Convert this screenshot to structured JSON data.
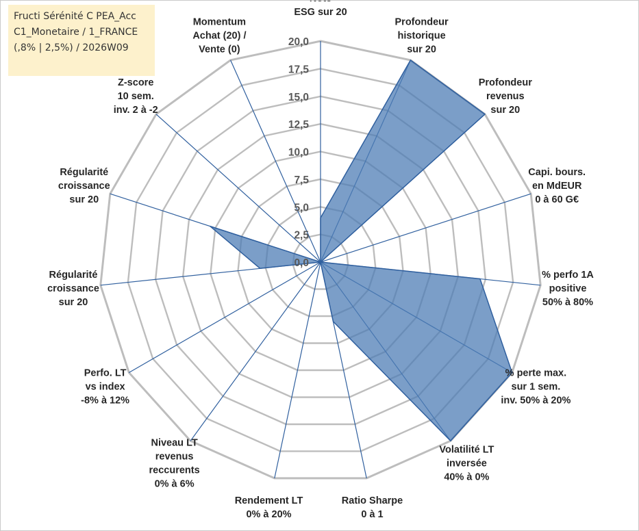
{
  "info_box": {
    "lines": [
      "Fructi Sérénité C PEA_Acc",
      "C1_Monetaire / 1_FRANCE",
      "(,8% | 2,5%) / 2026W09"
    ]
  },
  "colors": {
    "fill": "#4f7db5",
    "fill_opacity": 0.75,
    "outline": "#2f5f9e",
    "spoke": "#2f5f9e",
    "grid": "#bdbdbd",
    "info_box_bg": "#fdf1cc"
  },
  "chart_data": {
    "type": "radar",
    "title": "",
    "rlim": [
      0,
      20
    ],
    "tick_step": 2.5,
    "tick_labels": [
      "0,0",
      "2,5",
      "5,0",
      "7,5",
      "10,0",
      "12,5",
      "15,0",
      "17,5",
      "20,0"
    ],
    "grid": true,
    "legend": "none",
    "axes": [
      {
        "label": [
          "Note",
          "ESG sur 20"
        ],
        "value": 4.0
      },
      {
        "label": [
          "Profondeur",
          "historique",
          "sur 20"
        ],
        "value": 20.0
      },
      {
        "label": [
          "Profondeur",
          "revenus",
          "sur 20"
        ],
        "value": 20.0
      },
      {
        "label": [
          "Capi. bours.",
          "en MdEUR",
          "0 à 60 G€"
        ],
        "value": 0.0
      },
      {
        "label": [
          "% perfo 1A",
          "positive",
          "50% à 80%"
        ],
        "value": 14.5
      },
      {
        "label": [
          "% perte max.",
          "sur 1 sem.",
          "inv. 50% à 20%"
        ],
        "value": 20.0
      },
      {
        "label": [
          "Volatilité LT",
          "inversée",
          "40% à 0%"
        ],
        "value": 20.0
      },
      {
        "label": [
          "Ratio Sharpe",
          "0 à 1"
        ],
        "value": 5.5
      },
      {
        "label": [
          "Rendement LT",
          "0% à 20%"
        ],
        "value": 0.0
      },
      {
        "label": [
          "Niveau LT",
          "revenus",
          "reccurents",
          "0% à 6%"
        ],
        "value": 0.0
      },
      {
        "label": [
          "Perfo. LT",
          "vs index",
          "-8% à 12%"
        ],
        "value": 0.0
      },
      {
        "label": [
          "Régularité",
          "croissance",
          "sur 20"
        ],
        "value": 5.5
      },
      {
        "label": [
          "Régularité",
          "croissance",
          "sur 20"
        ],
        "value": 10.5
      },
      {
        "label": [
          "Z-score",
          "10 sem.",
          "inv. 2 à -2"
        ],
        "value": 0.0
      },
      {
        "label": [
          "Momentum",
          "Achat (20) /",
          "Vente (0)"
        ],
        "value": 0.0
      }
    ]
  }
}
